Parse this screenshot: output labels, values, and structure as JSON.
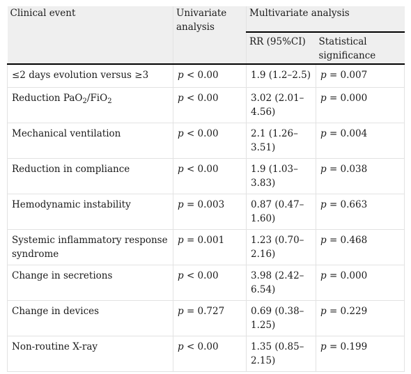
{
  "header": {
    "clinical_event": "Clinical event",
    "univariate": "Univariate analysis",
    "multivariate": "Multivariate analysis",
    "rr": "RR (95%CI)",
    "significance": "Statistical significance"
  },
  "rows": [
    {
      "event": "≤2 days evolution versus ≥3",
      "uni_p": "p",
      "uni_op": " < 0.00",
      "rr": "1.9 (1.2–2.5)",
      "sig_p": "p",
      "sig_val": " = 0.007"
    },
    {
      "event_main": "Reduction PaO",
      "event_sub1": "2",
      "event_mid": "/FiO",
      "event_sub2": "2",
      "uni_p": "p",
      "uni_op": " < 0.00",
      "rr": "3.02 (2.01–4.56)",
      "sig_p": "p",
      "sig_val": " = 0.000"
    },
    {
      "event": "Mechanical ventilation",
      "uni_p": "p",
      "uni_op": " < 0.00",
      "rr": "2.1 (1.26–3.51)",
      "sig_p": "p",
      "sig_val": " = 0.004"
    },
    {
      "event": "Reduction in compliance",
      "uni_p": "p",
      "uni_op": " < 0.00",
      "rr": "1.9 (1.03–3.83)",
      "sig_p": "p",
      "sig_val": " = 0.038"
    },
    {
      "event": "Hemodynamic instability",
      "uni_p": "p",
      "uni_op": " = 0.003",
      "rr": "0.87 (0.47–1.60)",
      "sig_p": "p",
      "sig_val": " = 0.663"
    },
    {
      "event": "Systemic inflammatory response syndrome",
      "uni_p": "p",
      "uni_op": " = 0.001",
      "rr": "1.23 (0.70–2.16)",
      "sig_p": "p",
      "sig_val": " = 0.468"
    },
    {
      "event": "Change in secretions",
      "uni_p": "p",
      "uni_op": " < 0.00",
      "rr": "3.98 (2.42–6.54)",
      "sig_p": "p",
      "sig_val": " = 0.000"
    },
    {
      "event": "Change in devices",
      "uni_p": "p",
      "uni_op": " = 0.727",
      "rr": "0.69 (0.38–1.25)",
      "sig_p": "p",
      "sig_val": " = 0.229"
    },
    {
      "event": "Non-routine X-ray",
      "uni_p": "p",
      "uni_op": " < 0.00",
      "rr": "1.35 (0.85–2.15)",
      "sig_p": "p",
      "sig_val": " = 0.199"
    }
  ]
}
